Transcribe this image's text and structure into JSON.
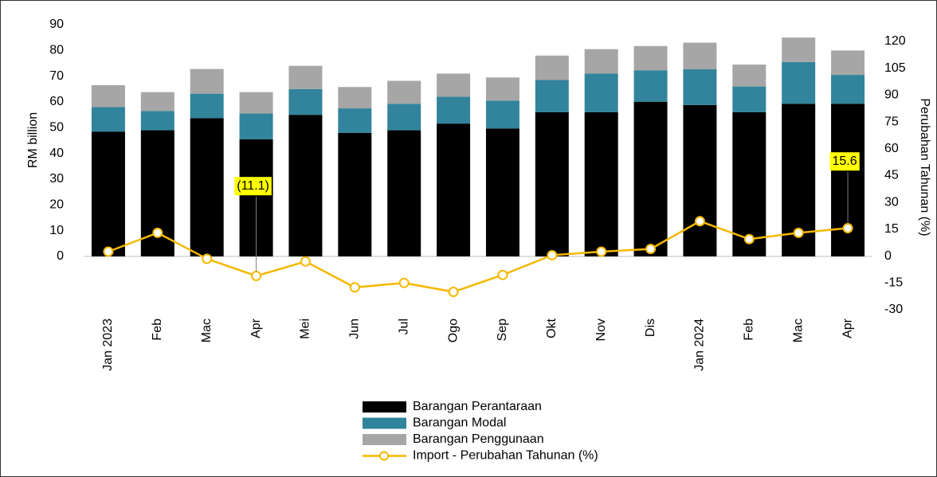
{
  "chart_data": {
    "type": "bar",
    "categories": [
      "Jan 2023",
      "Feb",
      "Mac",
      "Apr",
      "Mei",
      "Jun",
      "Jul",
      "Ogo",
      "Sep",
      "Okt",
      "Nov",
      "Dis",
      "Jan 2024",
      "Feb",
      "Mac",
      "Apr"
    ],
    "stacked": true,
    "ylabel": "RM billion",
    "y2label": "Perubahan Tahunan (%)",
    "ylim": [
      0,
      90
    ],
    "yticks": [
      0,
      10,
      20,
      30,
      40,
      50,
      60,
      70,
      80,
      90
    ],
    "y2lim": [
      -30,
      120
    ],
    "y2ticks": [
      -30,
      -15,
      0,
      15,
      30,
      45,
      60,
      75,
      90,
      105,
      120
    ],
    "series": [
      {
        "name": "Barangan Perantaraan",
        "type": "bar",
        "color": "#000000",
        "values": [
          48.5,
          49,
          53.7,
          45.5,
          55,
          48,
          49,
          51.6,
          49.7,
          56,
          56,
          60,
          58.8,
          56,
          59.3,
          59.3
        ]
      },
      {
        "name": "Barangan Modal",
        "type": "bar",
        "color": "#31849b",
        "values": [
          9.5,
          7.5,
          9.5,
          10,
          10,
          9.5,
          10.3,
          10.4,
          10.8,
          12.5,
          15,
          12.3,
          13.9,
          10,
          16.2,
          11.2
        ]
      },
      {
        "name": "Barangan Penggunaan",
        "type": "bar",
        "color": "#a6a6a6",
        "values": [
          8.5,
          7.3,
          9.6,
          8.3,
          9,
          8.3,
          8.9,
          9,
          9,
          9.5,
          9.5,
          9.4,
          10.3,
          8.5,
          9.5,
          9.5
        ]
      },
      {
        "name": "Import - Perubahan Tahunan (%)",
        "type": "line",
        "axis": "y2",
        "color": "#f5b800",
        "values": [
          2.5,
          13,
          -1.5,
          -11.1,
          -3,
          -17.5,
          -15,
          -20,
          -10.5,
          0.5,
          2.5,
          4,
          19.5,
          9.5,
          13,
          15.6
        ],
        "value_labels": [
          null,
          null,
          null,
          "(11.1)",
          null,
          null,
          null,
          null,
          null,
          null,
          null,
          null,
          null,
          null,
          null,
          "15.6"
        ]
      }
    ]
  }
}
